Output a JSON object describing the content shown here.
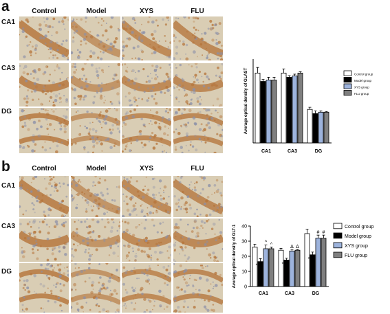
{
  "panel_a": {
    "letter": "a",
    "columns": [
      "Control",
      "Model",
      "XYS",
      "FLU"
    ],
    "rows": [
      "CA1",
      "CA3",
      "DG"
    ]
  },
  "panel_b": {
    "letter": "b",
    "columns": [
      "Control",
      "Model",
      "XYS",
      "FLU"
    ],
    "rows": [
      "CA1",
      "CA3",
      "DG"
    ]
  },
  "stain_colors": {
    "background": "#d9cdb4",
    "cell": "#b5743a",
    "nuclei": "#8a8fa8"
  },
  "chart_data": [
    {
      "type": "bar",
      "title": "",
      "xlabel": "",
      "ylabel": "Average optical density of GLAST",
      "categories": [
        "CA1",
        "CA3",
        "DG"
      ],
      "ylim": [
        0,
        60
      ],
      "yticks_visible": false,
      "grid": false,
      "legend": "top-right",
      "series": [
        {
          "name": "Control group",
          "color": "#ffffff",
          "values": [
            50,
            50,
            24
          ],
          "errors": [
            4,
            3,
            1.5
          ]
        },
        {
          "name": "Model group",
          "color": "#000000",
          "values": [
            44,
            47,
            21
          ],
          "errors": [
            1.5,
            1.2,
            2
          ]
        },
        {
          "name": "XYS group",
          "color": "#9db3dc",
          "values": [
            45,
            48,
            22
          ],
          "errors": [
            2,
            1.2,
            1
          ]
        },
        {
          "name": "FLU group",
          "color": "#7f7f7f",
          "values": [
            45,
            50,
            22
          ],
          "errors": [
            2,
            1,
            0.5
          ]
        }
      ],
      "annotations": []
    },
    {
      "type": "bar",
      "title": "",
      "xlabel": "",
      "ylabel": "Average optical density of GLT-1",
      "categories": [
        "CA1",
        "CA3",
        "DG"
      ],
      "ylim": [
        0,
        40
      ],
      "yticks": [
        0,
        10,
        20,
        30,
        40
      ],
      "grid": false,
      "legend": "top-right",
      "series": [
        {
          "name": "Control group",
          "color": "#ffffff",
          "values": [
            26,
            24,
            35
          ],
          "errors": [
            2,
            1.2,
            3
          ]
        },
        {
          "name": "Model group",
          "color": "#000000",
          "values": [
            16.5,
            17.5,
            21
          ],
          "errors": [
            2,
            1.2,
            1.8
          ]
        },
        {
          "name": "XYS group",
          "color": "#9db3dc",
          "values": [
            25,
            23.5,
            32
          ],
          "errors": [
            2.5,
            1,
            2
          ]
        },
        {
          "name": "FLU group",
          "color": "#7f7f7f",
          "values": [
            25,
            24,
            32
          ],
          "errors": [
            1,
            0.5,
            2
          ]
        }
      ],
      "annotations": [
        {
          "category": "CA1",
          "series": "Model group",
          "text": "*"
        },
        {
          "category": "CA1",
          "series": "XYS group",
          "text": "^"
        },
        {
          "category": "CA1",
          "series": "FLU group",
          "text": "^"
        },
        {
          "category": "CA3",
          "series": "Model group",
          "text": "*"
        },
        {
          "category": "CA3",
          "series": "XYS group",
          "text": "Δ"
        },
        {
          "category": "CA3",
          "series": "FLU group",
          "text": "Δ"
        },
        {
          "category": "DG",
          "series": "Model group",
          "text": "*"
        },
        {
          "category": "DG",
          "series": "XYS group",
          "text": "#"
        },
        {
          "category": "DG",
          "series": "FLU group",
          "text": "#"
        }
      ]
    }
  ]
}
